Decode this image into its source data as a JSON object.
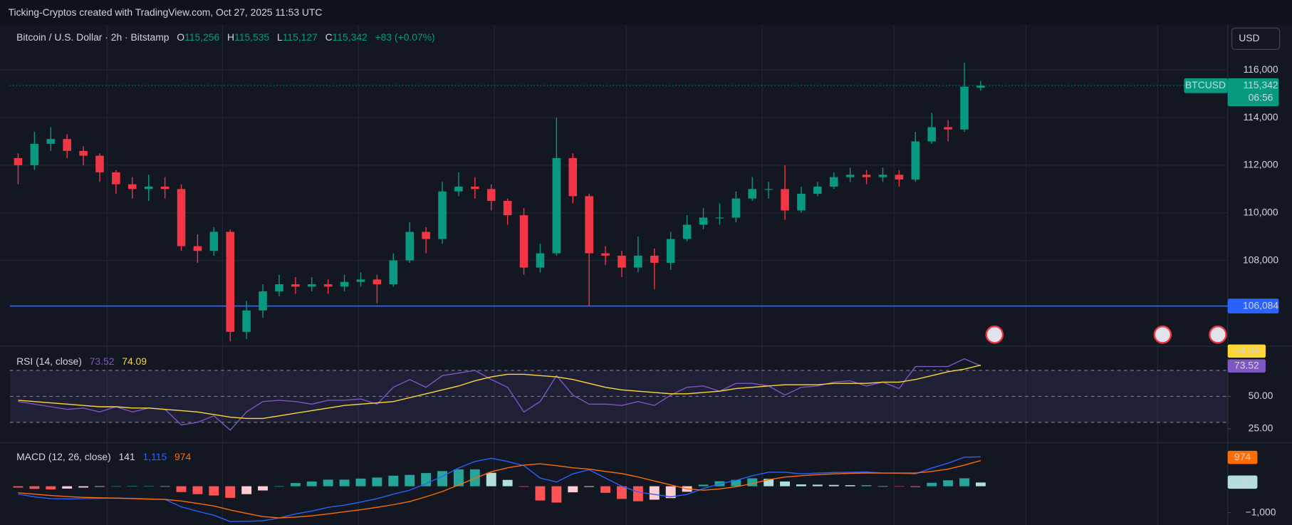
{
  "header": {
    "watermark": "Ticking-Cryptos created with TradingView.com, Oct 27, 2025 11:53 UTC"
  },
  "chart_data": [
    {
      "type": "candlestick",
      "title": "Bitcoin / U.S. Dollar · 2h · Bitstamp",
      "legend": {
        "o_label": "O",
        "open": "115,256",
        "h_label": "H",
        "high": "115,535",
        "l_label": "L",
        "low": "115,127",
        "c_label": "C",
        "close": "115,342",
        "change": "+83 (+0.07%)"
      },
      "currency": "USD",
      "symbol": "BTCUSD",
      "countdown": "06:56",
      "last_price": {
        "value": 115342,
        "label": "115,342"
      },
      "hline": {
        "value": 106084,
        "label": "106,084",
        "color": "#2962ff"
      },
      "up_color": "#089981",
      "down_color": "#f23645",
      "ylim": [
        104400,
        117900
      ],
      "yticks": [
        {
          "value": 108000,
          "label": "108,000"
        },
        {
          "value": 110000,
          "label": "110,000"
        },
        {
          "value": 112000,
          "label": "112,000"
        },
        {
          "value": 114000,
          "label": "114,000"
        },
        {
          "value": 116000,
          "label": "116,000"
        }
      ],
      "grid": true,
      "open": [
        112300,
        112000,
        112900,
        113100,
        112600,
        112400,
        111700,
        111200,
        111000,
        111100,
        111000,
        108600,
        108400,
        109200,
        105000,
        105900,
        106700,
        107000,
        106900,
        107000,
        106900,
        107100,
        107200,
        107000,
        108000,
        109200,
        108900,
        110900,
        111100,
        111000,
        110500,
        109900,
        107700,
        108300,
        112300,
        110700,
        108300,
        108200,
        107700,
        108200,
        107900,
        108900,
        109500,
        109800,
        109800,
        110600,
        111000,
        111000,
        110100,
        110800,
        111100,
        111500,
        111600,
        111500,
        111600,
        111400,
        113000,
        113600,
        113500,
        115256
      ],
      "high": [
        112500,
        113400,
        113600,
        113300,
        112800,
        112500,
        111800,
        111500,
        111600,
        111500,
        111200,
        109100,
        109400,
        109300,
        106300,
        107000,
        107400,
        107300,
        107300,
        107200,
        107400,
        107500,
        107400,
        108300,
        109600,
        109400,
        111300,
        111700,
        111500,
        111200,
        110600,
        110200,
        108700,
        114000,
        112500,
        110800,
        108600,
        108400,
        109000,
        108500,
        109200,
        109900,
        110200,
        110400,
        110900,
        111500,
        111300,
        112000,
        111100,
        111300,
        111700,
        111900,
        111800,
        111900,
        111800,
        113400,
        114200,
        113900,
        116300,
        115535
      ],
      "low": [
        111200,
        111800,
        112600,
        112300,
        112000,
        111300,
        110800,
        110600,
        110500,
        110600,
        108400,
        107900,
        108200,
        104600,
        104700,
        105600,
        106500,
        106600,
        106700,
        106600,
        106700,
        106900,
        106200,
        106900,
        107900,
        108300,
        108700,
        110700,
        110600,
        110100,
        109500,
        107400,
        107500,
        108200,
        110400,
        106100,
        107800,
        107300,
        107500,
        106800,
        107600,
        108800,
        109300,
        109500,
        109600,
        110500,
        110600,
        109700,
        110000,
        110700,
        111000,
        111300,
        111200,
        111300,
        111100,
        111300,
        112900,
        113000,
        113400,
        115127
      ],
      "close": [
        112000,
        112900,
        113100,
        112600,
        112400,
        111700,
        111200,
        111000,
        111100,
        111000,
        108600,
        108400,
        109200,
        105000,
        105900,
        106700,
        107000,
        106900,
        107000,
        106900,
        107100,
        107200,
        107000,
        108000,
        109200,
        108900,
        110900,
        111100,
        111000,
        110500,
        109900,
        107700,
        108300,
        112300,
        110700,
        108300,
        108200,
        107700,
        108200,
        107900,
        108900,
        109500,
        109800,
        109800,
        110600,
        111000,
        111000,
        110100,
        110800,
        111100,
        111500,
        111600,
        111500,
        111600,
        111400,
        113000,
        113600,
        113500,
        115300,
        115342
      ]
    },
    {
      "type": "line",
      "title": "RSI (14, close)",
      "ylim": [
        14.4,
        88.7
      ],
      "yticks": [
        {
          "value": 25,
          "label": "25.00"
        },
        {
          "value": 50,
          "label": "50.00"
        }
      ],
      "bands": [
        30,
        50,
        70
      ],
      "band_fill": "#7e57c2",
      "series": [
        {
          "color": "#7e57c2",
          "last_label": "73.52",
          "values": [
            46,
            44,
            42,
            40,
            41,
            38,
            42,
            38,
            41,
            40,
            28,
            30,
            35,
            24,
            38,
            46,
            47,
            46,
            44,
            47,
            47,
            48,
            44,
            57,
            63,
            57,
            66,
            68,
            70,
            63,
            57,
            38,
            46,
            66,
            51,
            44,
            44,
            43,
            46,
            43,
            51,
            57,
            58,
            54,
            60,
            60,
            58,
            51,
            57,
            58,
            61,
            62,
            58,
            61,
            56,
            73,
            73,
            73,
            79,
            73.52
          ]
        },
        {
          "color": "#fdd835",
          "last_label": "74.09",
          "values": [
            47,
            46,
            45,
            44,
            43,
            42,
            42,
            41,
            41,
            40,
            39,
            38,
            36,
            34,
            33,
            33,
            35,
            37,
            39,
            41,
            43,
            44,
            45,
            46,
            49,
            52,
            55,
            58,
            62,
            65,
            67,
            67,
            66,
            65,
            63,
            60,
            57,
            55,
            54,
            53,
            52,
            52,
            53,
            54,
            56,
            57,
            58,
            59,
            59,
            59,
            60,
            60,
            60,
            61,
            61,
            63,
            66,
            69,
            71,
            74.09
          ]
        }
      ]
    },
    {
      "type": "macd",
      "title": "MACD (12, 26, close)",
      "ylim": [
        -1469,
        1656
      ],
      "yticks": [
        {
          "value": -1000,
          "label": "−1,000"
        }
      ],
      "histogram": {
        "last_label": "141",
        "colors": {
          "positive_rising": "#26a69a",
          "positive_falling": "#b2dfdb",
          "negative_falling": "#ff5252",
          "negative_rising": "#ffcdd2"
        },
        "values": [
          -50,
          -100,
          -120,
          -90,
          -50,
          -20,
          0,
          10,
          10,
          0,
          -220,
          -300,
          -350,
          -440,
          -300,
          -160,
          0,
          120,
          180,
          250,
          250,
          290,
          330,
          400,
          430,
          500,
          575,
          640,
          640,
          510,
          240,
          -20,
          -540,
          -620,
          -230,
          -25,
          -250,
          -480,
          -570,
          -510,
          -450,
          -210,
          60,
          190,
          240,
          300,
          280,
          180,
          70,
          60,
          50,
          40,
          40,
          0,
          -10,
          -30,
          130,
          225,
          300,
          141
        ]
      },
      "series": [
        {
          "color": "#2962ff",
          "last_label": "1,115",
          "values": [
            -300,
            -400,
            -470,
            -480,
            -470,
            -460,
            -450,
            -460,
            -480,
            -500,
            -780,
            -950,
            -1100,
            -1340,
            -1330,
            -1310,
            -1200,
            -1050,
            -940,
            -800,
            -720,
            -600,
            -470,
            -300,
            -150,
            100,
            375,
            690,
            940,
            1060,
            940,
            780,
            310,
            160,
            470,
            625,
            310,
            0,
            -220,
            -310,
            -400,
            -310,
            -90,
            90,
            220,
            400,
            530,
            530,
            470,
            500,
            520,
            530,
            540,
            500,
            490,
            470,
            690,
            875,
            1100,
            1115
          ]
        },
        {
          "color": "#ff6d00",
          "last_label": "974",
          "values": [
            -250,
            -300,
            -350,
            -390,
            -420,
            -440,
            -450,
            -470,
            -490,
            -500,
            -560,
            -650,
            -750,
            -900,
            -1030,
            -1150,
            -1200,
            -1170,
            -1120,
            -1050,
            -970,
            -890,
            -800,
            -700,
            -580,
            -400,
            -200,
            50,
            300,
            550,
            700,
            800,
            850,
            780,
            700,
            650,
            560,
            480,
            350,
            200,
            50,
            -100,
            -150,
            -100,
            -20,
            100,
            250,
            350,
            400,
            440,
            470,
            490,
            500,
            500,
            500,
            500,
            560,
            650,
            800,
            974
          ]
        }
      ]
    }
  ]
}
